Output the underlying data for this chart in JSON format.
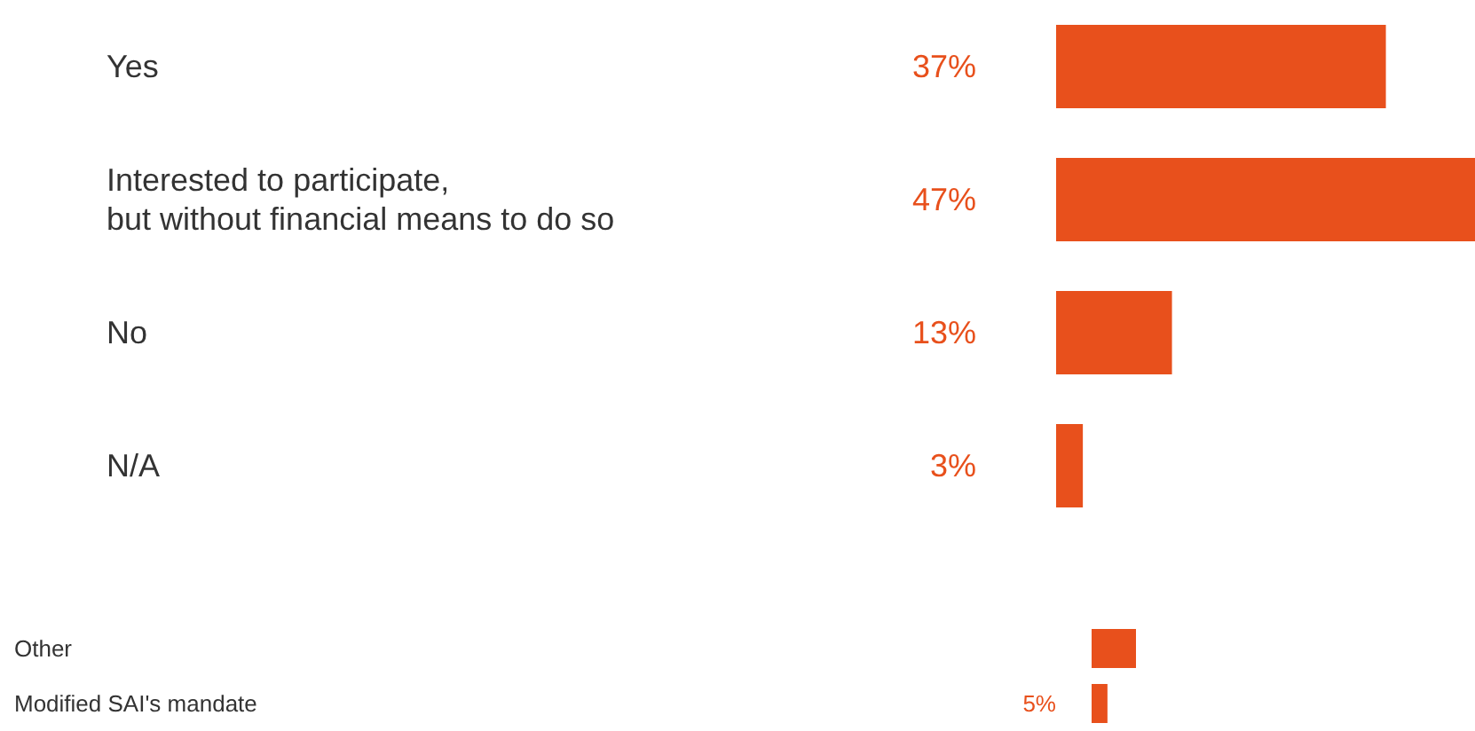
{
  "chart_data": [
    {
      "type": "bar",
      "orientation": "horizontal",
      "categories": [
        "Yes",
        "Interested to participate,\nbut without financial means to do so",
        "No",
        "N/A"
      ],
      "series": [
        {
          "color": "#e8501c",
          "values": [
            37,
            47,
            13,
            3
          ],
          "value_labels": [
            "37%",
            "47%",
            "13%",
            "3%"
          ]
        }
      ]
    },
    {
      "type": "bar",
      "orientation": "horizontal",
      "categories": [
        "Other",
        "Modified SAI's mandate"
      ],
      "series": [
        {
          "color": "#e8501c",
          "values": [
            14,
            5
          ],
          "value_labels": [
            null,
            "5%"
          ]
        }
      ]
    }
  ]
}
